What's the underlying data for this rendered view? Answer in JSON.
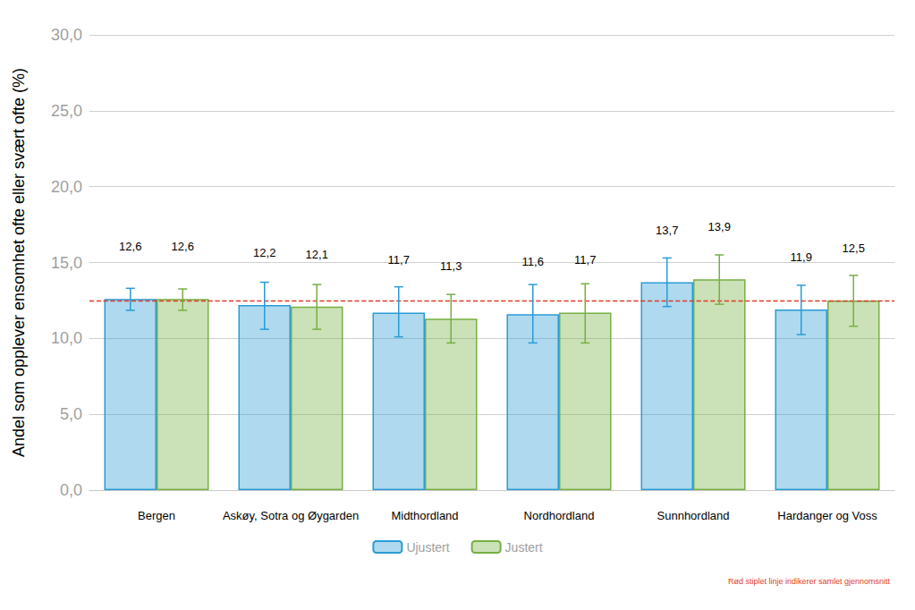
{
  "chart_data": {
    "type": "bar",
    "y_label": "Andel som opplever ensomhet ofte eller svært ofte (%)",
    "categories": [
      "Bergen",
      "Askøy, Sotra og Øygarden",
      "Midthordland",
      "Nordhordland",
      "Sunnhordland",
      "Hardanger og Voss"
    ],
    "series": [
      {
        "name": "Ujustert",
        "color": "#2a9bd6",
        "values": [
          12.6,
          12.2,
          11.7,
          11.6,
          13.7,
          11.9
        ],
        "value_labels": [
          "12,6",
          "12,2",
          "11,7",
          "11,6",
          "13,7",
          "11,9"
        ],
        "error_low": [
          11.85,
          10.6,
          10.1,
          9.7,
          12.1,
          10.25
        ],
        "error_high": [
          13.3,
          13.7,
          13.4,
          13.55,
          15.3,
          13.5
        ]
      },
      {
        "name": "Justert",
        "color": "#76b043",
        "values": [
          12.6,
          12.1,
          11.3,
          11.7,
          13.9,
          12.5
        ],
        "value_labels": [
          "12,6",
          "12,1",
          "11,3",
          "11,7",
          "13,9",
          "12,5"
        ],
        "error_low": [
          11.85,
          10.6,
          9.7,
          9.7,
          12.25,
          10.8
        ],
        "error_high": [
          13.26,
          13.55,
          12.9,
          13.6,
          15.5,
          14.15
        ]
      }
    ],
    "reference_line": {
      "value": 12.5,
      "color": "#e03c2b",
      "note": "Rød stiplet linje indikerer samlet gjennomsnitt"
    },
    "ylim": [
      0,
      30
    ],
    "yticks": [
      {
        "value": 0,
        "label": "0,0"
      },
      {
        "value": 5,
        "label": "5,0"
      },
      {
        "value": 10,
        "label": "10,0"
      },
      {
        "value": 15,
        "label": "15,0"
      },
      {
        "value": 20,
        "label": "20,0"
      },
      {
        "value": 25,
        "label": "25,0"
      },
      {
        "value": 30,
        "label": "30,0"
      }
    ],
    "grid": true,
    "legend": "bottom",
    "data_labels": true
  }
}
